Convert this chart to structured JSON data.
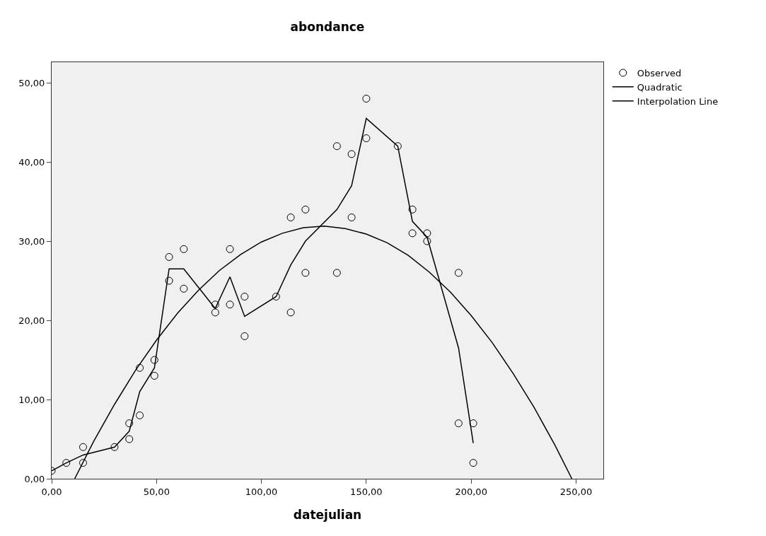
{
  "chart_data": {
    "type": "scatter",
    "title": "abondance",
    "xlabel": "datejulian",
    "xlim": [
      0,
      263
    ],
    "ylim": [
      0,
      52.6
    ],
    "xticks": [
      {
        "value": 0,
        "label": "0,00"
      },
      {
        "value": 50,
        "label": "50,00"
      },
      {
        "value": 100,
        "label": "100,00"
      },
      {
        "value": 150,
        "label": "150,00"
      },
      {
        "value": 200,
        "label": "200,00"
      },
      {
        "value": 250,
        "label": "250,00"
      }
    ],
    "yticks": [
      {
        "value": 0,
        "label": "0,00"
      },
      {
        "value": 10,
        "label": "10,00"
      },
      {
        "value": 20,
        "label": "20,00"
      },
      {
        "value": 30,
        "label": "30,00"
      },
      {
        "value": 40,
        "label": "40,00"
      },
      {
        "value": 50,
        "label": "50,00"
      }
    ],
    "grid": false,
    "legend": "top right",
    "series": [
      {
        "name": "Observed",
        "marker": "circle",
        "color": "#000000",
        "x": [
          0,
          7,
          15,
          15,
          30,
          37,
          37,
          42,
          42,
          49,
          49,
          56,
          56,
          63,
          63,
          78,
          78,
          85,
          85,
          92,
          92,
          107,
          114,
          114,
          121,
          121,
          136,
          136,
          143,
          143,
          150,
          150,
          165,
          172,
          172,
          179,
          179,
          194,
          194,
          201,
          201
        ],
        "values": [
          1,
          2,
          4,
          2,
          4,
          5,
          7,
          8,
          14,
          15,
          13,
          25,
          28,
          29,
          24,
          22,
          21,
          29,
          22,
          23,
          18,
          23,
          33,
          21,
          34,
          26,
          42,
          26,
          41,
          33,
          48,
          43,
          42,
          34,
          31,
          31,
          30,
          26,
          7,
          7,
          2
        ]
      },
      {
        "name": "Quadratic",
        "type": "line",
        "marker": "none",
        "color": "#000000",
        "x": [
          11,
          20,
          30,
          40,
          50,
          60,
          70,
          80,
          90,
          100,
          110,
          120,
          130,
          140,
          150,
          160,
          170,
          180,
          190,
          200,
          210,
          220,
          230,
          240,
          248
        ],
        "values": [
          0,
          4.7,
          9.4,
          13.7,
          17.5,
          20.9,
          23.8,
          26.3,
          28.3,
          29.9,
          31.0,
          31.7,
          31.9,
          31.6,
          30.9,
          29.8,
          28.2,
          26.1,
          23.6,
          20.6,
          17.2,
          13.3,
          9.0,
          4.2,
          0
        ]
      },
      {
        "name": "Interpolation Line",
        "type": "line",
        "marker": "none",
        "color": "#000000",
        "x": [
          0,
          7,
          15,
          30,
          37,
          42,
          49,
          56,
          63,
          78,
          85,
          92,
          107,
          114,
          121,
          136,
          143,
          150,
          165,
          172,
          179,
          194,
          201
        ],
        "values": [
          1,
          2,
          3,
          4,
          6,
          11,
          14,
          26.5,
          26.5,
          21.5,
          25.5,
          20.5,
          23,
          27,
          30,
          34,
          37,
          45.5,
          42,
          32.5,
          30.5,
          16.5,
          4.5
        ]
      }
    ]
  }
}
